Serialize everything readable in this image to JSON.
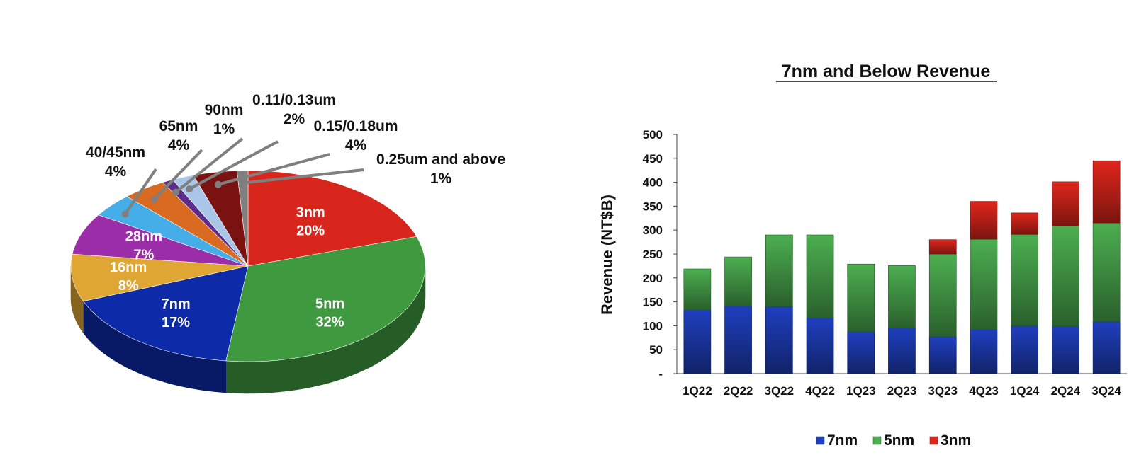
{
  "chart_data": [
    {
      "type": "pie",
      "title": "",
      "slices": [
        {
          "name": "3nm",
          "value": 20,
          "label": "3nm",
          "pct": "20%",
          "color": "#d9261c",
          "inside": true
        },
        {
          "name": "5nm",
          "value": 32,
          "label": "5nm",
          "pct": "32%",
          "color": "#3f9a3f",
          "inside": true
        },
        {
          "name": "7nm",
          "value": 17,
          "label": "7nm",
          "pct": "17%",
          "color": "#0d2aa8",
          "inside": true
        },
        {
          "name": "16nm",
          "value": 8,
          "label": "16nm",
          "pct": "8%",
          "color": "#e0a634",
          "inside": true
        },
        {
          "name": "28nm",
          "value": 7,
          "label": "28nm",
          "pct": "7%",
          "color": "#9b2ea8",
          "inside": true
        },
        {
          "name": "40/45nm",
          "value": 4,
          "label": "40/45nm",
          "pct": "4%",
          "color": "#45aee8",
          "inside": false
        },
        {
          "name": "65nm",
          "value": 4,
          "label": "65nm",
          "pct": "4%",
          "color": "#d86a22",
          "inside": false
        },
        {
          "name": "90nm",
          "value": 1,
          "label": "90nm",
          "pct": "1%",
          "color": "#5b2c8a",
          "inside": false
        },
        {
          "name": "0.11/0.13um",
          "value": 2,
          "label": "0.11/0.13um",
          "pct": "2%",
          "color": "#a9c6e8",
          "inside": false
        },
        {
          "name": "0.15/0.18um",
          "value": 4,
          "label": "0.15/0.18um",
          "pct": "4%",
          "color": "#7a1212",
          "inside": false
        },
        {
          "name": "0.25um and above",
          "value": 1,
          "label": "0.25um and above",
          "pct": "1%",
          "color": "#7f7f7f",
          "inside": false
        }
      ]
    },
    {
      "type": "bar",
      "stacked": true,
      "title": "7nm and Below Revenue",
      "xlabel": "",
      "ylabel": "Revenue (NT$B)",
      "ylim": [
        0,
        500
      ],
      "yticks": [
        "-",
        "50",
        "100",
        "150",
        "200",
        "250",
        "300",
        "350",
        "400",
        "450",
        "500"
      ],
      "categories": [
        "1Q22",
        "2Q22",
        "3Q22",
        "4Q22",
        "1Q23",
        "2Q23",
        "3Q23",
        "4Q23",
        "1Q24",
        "2Q24",
        "3Q24"
      ],
      "series": [
        {
          "name": "7nm",
          "color": "#1f3fbf",
          "values": [
            133,
            142,
            140,
            116,
            88,
            95,
            77,
            92,
            100,
            99,
            109
          ]
        },
        {
          "name": "5nm",
          "color": "#4caf50",
          "values": [
            86,
            102,
            150,
            174,
            141,
            131,
            173,
            189,
            191,
            210,
            206
          ]
        },
        {
          "name": "3nm",
          "color": "#e0261c",
          "values": [
            0,
            0,
            0,
            0,
            0,
            0,
            30,
            79,
            45,
            92,
            130
          ]
        }
      ],
      "legend": "bottom"
    }
  ]
}
